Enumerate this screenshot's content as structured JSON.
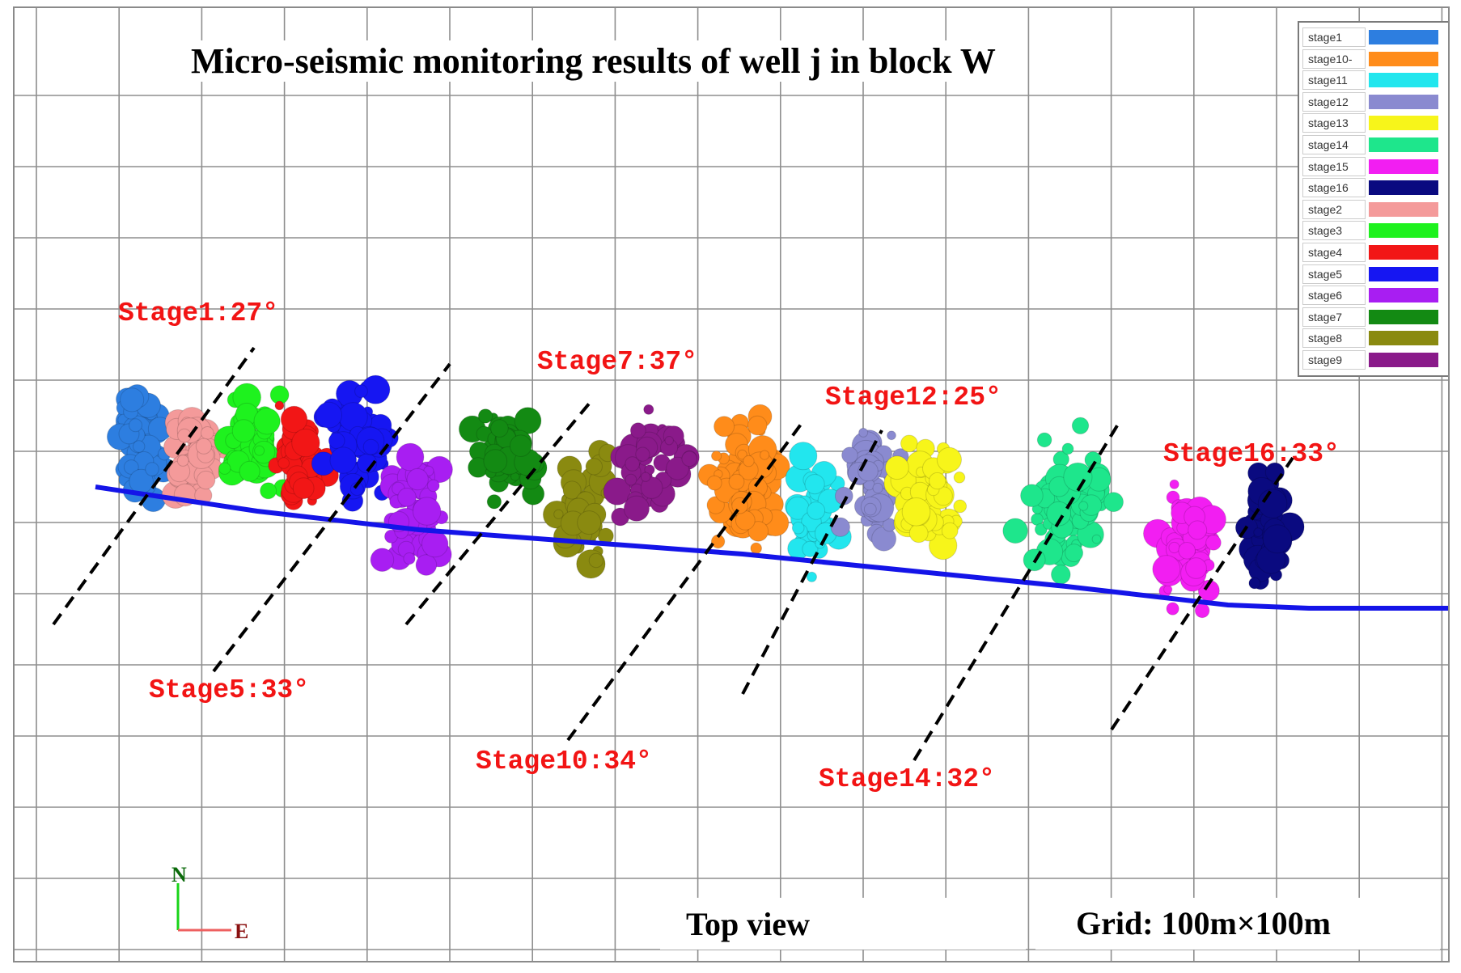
{
  "title": "Micro-seismic monitoring results of well j in block W",
  "bottom": {
    "view_label": "Top view",
    "grid_label": "Grid: 100m×100m",
    "compass_n": "N",
    "compass_e": "E"
  },
  "legend": [
    {
      "name": "stage1",
      "color": "#2d7ee0"
    },
    {
      "name": "stage10-",
      "color": "#ff8c1a"
    },
    {
      "name": "stage11",
      "color": "#22e6ee"
    },
    {
      "name": "stage12",
      "color": "#8a8ad0"
    },
    {
      "name": "stage13",
      "color": "#f7f51a"
    },
    {
      "name": "stage14",
      "color": "#1ee68c"
    },
    {
      "name": "stage15",
      "color": "#f21ef2"
    },
    {
      "name": "stage16",
      "color": "#0a0a80"
    },
    {
      "name": "stage2",
      "color": "#f49a9a"
    },
    {
      "name": "stage3",
      "color": "#1ef21e"
    },
    {
      "name": "stage4",
      "color": "#f21616"
    },
    {
      "name": "stage5",
      "color": "#1616f2"
    },
    {
      "name": "stage6",
      "color": "#a81ef2"
    },
    {
      "name": "stage7",
      "color": "#138a13"
    },
    {
      "name": "stage8",
      "color": "#8a8a10"
    },
    {
      "name": "stage9",
      "color": "#8a1a8a"
    }
  ],
  "annotations": [
    {
      "text": "Stage1:27°"
    },
    {
      "text": "Stage5:33°"
    },
    {
      "text": "Stage7:37°"
    },
    {
      "text": "Stage10:34°"
    },
    {
      "text": "Stage12:25°"
    },
    {
      "text": "Stage14:32°"
    },
    {
      "text": "Stage16:33°"
    }
  ],
  "chart_data": {
    "type": "scatter",
    "title": "Micro-seismic monitoring results of well j in block W",
    "grid": "100m×100m",
    "view": "Top view",
    "orientation": {
      "north": "up",
      "east": "right"
    },
    "fracture_azimuths": [
      {
        "stage": "Stage1",
        "angle_deg": 27
      },
      {
        "stage": "Stage5",
        "angle_deg": 33
      },
      {
        "stage": "Stage7",
        "angle_deg": 37
      },
      {
        "stage": "Stage10",
        "angle_deg": 34
      },
      {
        "stage": "Stage12",
        "angle_deg": 25
      },
      {
        "stage": "Stage14",
        "angle_deg": 32
      },
      {
        "stage": "Stage16",
        "angle_deg": 33
      }
    ],
    "event_clusters": [
      {
        "stage": "stage1",
        "cx": 1.3,
        "cy": 5.3,
        "spread_x": 0.45,
        "spread_y": 0.9,
        "count": 60
      },
      {
        "stage": "stage2",
        "cx": 1.9,
        "cy": 5.1,
        "spread_x": 0.45,
        "spread_y": 0.9,
        "count": 60
      },
      {
        "stage": "stage3",
        "cx": 2.6,
        "cy": 5.2,
        "spread_x": 0.4,
        "spread_y": 0.9,
        "count": 50
      },
      {
        "stage": "stage4",
        "cx": 3.2,
        "cy": 5.0,
        "spread_x": 0.4,
        "spread_y": 0.9,
        "count": 50
      },
      {
        "stage": "stage5",
        "cx": 3.9,
        "cy": 5.3,
        "spread_x": 0.55,
        "spread_y": 1.1,
        "count": 60
      },
      {
        "stage": "stage6",
        "cx": 4.6,
        "cy": 4.3,
        "spread_x": 0.55,
        "spread_y": 1.1,
        "count": 60
      },
      {
        "stage": "stage7",
        "cx": 5.7,
        "cy": 5.1,
        "spread_x": 0.55,
        "spread_y": 0.9,
        "count": 55
      },
      {
        "stage": "stage8",
        "cx": 6.6,
        "cy": 4.3,
        "spread_x": 0.45,
        "spread_y": 1.3,
        "count": 45
      },
      {
        "stage": "stage9",
        "cx": 7.4,
        "cy": 4.9,
        "spread_x": 0.65,
        "spread_y": 0.9,
        "count": 50
      },
      {
        "stage": "stage10-",
        "cx": 8.6,
        "cy": 4.6,
        "spread_x": 0.7,
        "spread_y": 1.2,
        "count": 70
      },
      {
        "stage": "stage11",
        "cx": 9.4,
        "cy": 4.4,
        "spread_x": 0.4,
        "spread_y": 1.3,
        "count": 40
      },
      {
        "stage": "stage12",
        "cx": 10.1,
        "cy": 4.7,
        "spread_x": 0.5,
        "spread_y": 1.2,
        "count": 45
      },
      {
        "stage": "stage13",
        "cx": 10.8,
        "cy": 4.5,
        "spread_x": 0.55,
        "spread_y": 1.0,
        "count": 45
      },
      {
        "stage": "stage14",
        "cx": 12.5,
        "cy": 4.3,
        "spread_x": 0.7,
        "spread_y": 1.3,
        "count": 70
      },
      {
        "stage": "stage15",
        "cx": 13.9,
        "cy": 3.9,
        "spread_x": 0.45,
        "spread_y": 1.2,
        "count": 50
      },
      {
        "stage": "stage16",
        "cx": 14.9,
        "cy": 4.1,
        "spread_x": 0.45,
        "spread_y": 1.2,
        "count": 45
      }
    ]
  }
}
